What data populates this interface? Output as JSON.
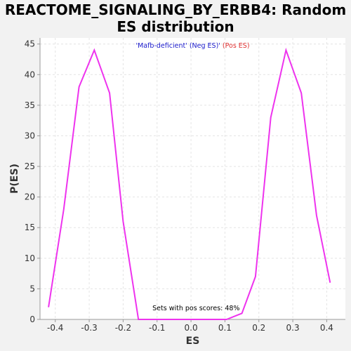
{
  "title_line1": "REACTOME_SIGNALING_BY_ERBB4: Random",
  "title_line2": "ES distribution",
  "legend": {
    "open_quote": "'",
    "neg_label": "Mafb-deficient' (Neg ES)",
    "close_quote": "' ",
    "pos_label": "(Pos ES)",
    "neg_color": "#1a1acc",
    "pos_color": "#e03030"
  },
  "annotation": "Sets with pos scores: 48%",
  "chart_data": {
    "type": "line",
    "xlabel": "ES",
    "ylabel": "P(ES)",
    "xlim": [
      -0.445,
      0.455
    ],
    "ylim": [
      0,
      46
    ],
    "x_ticks": [
      -0.4,
      -0.3,
      -0.2,
      -0.1,
      0.0,
      0.1,
      0.2,
      0.3,
      0.4
    ],
    "x_tick_labels": [
      "-0.4",
      "-0.3",
      "-0.2",
      "-0.1",
      "0.0",
      "0.1",
      "0.2",
      "0.3",
      "0.4"
    ],
    "y_ticks": [
      0,
      5,
      10,
      15,
      20,
      25,
      30,
      35,
      40,
      45
    ],
    "y_tick_labels": [
      "0",
      "5",
      "10",
      "15",
      "20",
      "25",
      "30",
      "35",
      "40",
      "45"
    ],
    "grid": true,
    "series": [
      {
        "color": "#ee33ee",
        "x": [
          -0.42,
          -0.375,
          -0.33,
          -0.285,
          -0.24,
          -0.2,
          -0.155,
          -0.11,
          -0.065,
          -0.02,
          0.025,
          0.07,
          0.105,
          0.15,
          0.19,
          0.235,
          0.28,
          0.325,
          0.37,
          0.41
        ],
        "y": [
          2,
          18,
          38,
          44,
          37,
          16,
          0,
          0,
          0,
          0,
          0,
          0,
          0,
          1,
          7,
          33,
          44,
          37,
          17,
          6
        ]
      }
    ]
  }
}
